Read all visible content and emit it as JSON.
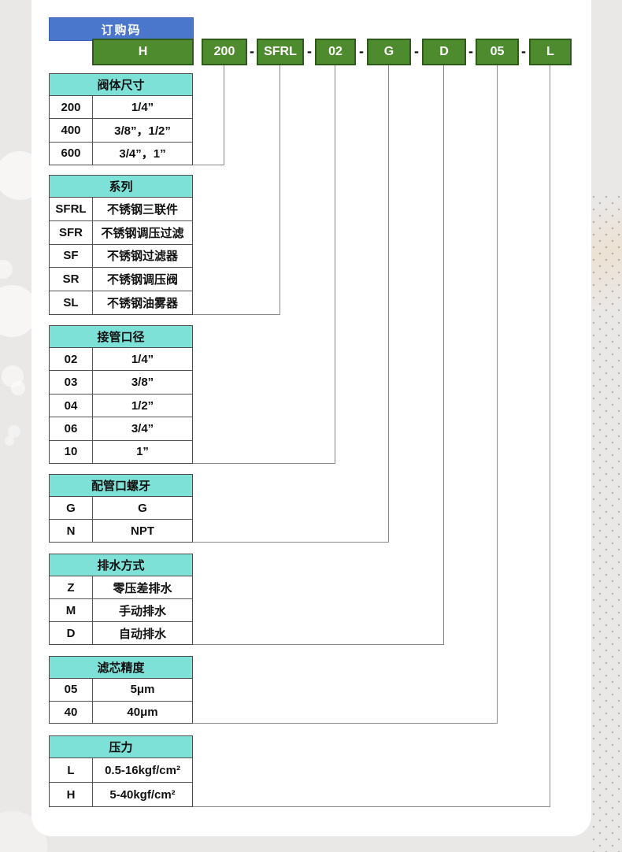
{
  "title": {
    "label": "订购码"
  },
  "code": {
    "separator": "-",
    "segments": [
      {
        "label": "H"
      },
      {
        "label": "200"
      },
      {
        "label": "SFRL"
      },
      {
        "label": "02"
      },
      {
        "label": "G"
      },
      {
        "label": "D"
      },
      {
        "label": "05"
      },
      {
        "label": "L"
      }
    ]
  },
  "tables": [
    {
      "header": "阀体尺寸",
      "rows": [
        [
          "200",
          "1/4”"
        ],
        [
          "400",
          "3/8”，1/2”"
        ],
        [
          "600",
          "3/4”，1”"
        ]
      ]
    },
    {
      "header": "系列",
      "rows": [
        [
          "SFRL",
          "不锈钢三联件"
        ],
        [
          "SFR",
          "不锈钢调压过滤"
        ],
        [
          "SF",
          "不锈钢过滤器"
        ],
        [
          "SR",
          "不锈钢调压阀"
        ],
        [
          "SL",
          "不锈钢油雾器"
        ]
      ]
    },
    {
      "header": "接管口径",
      "rows": [
        [
          "02",
          "1/4”"
        ],
        [
          "03",
          "3/8”"
        ],
        [
          "04",
          "1/2”"
        ],
        [
          "06",
          "3/4”"
        ],
        [
          "10",
          "1”"
        ]
      ]
    },
    {
      "header": "配管口螺牙",
      "rows": [
        [
          "G",
          "G"
        ],
        [
          "N",
          "NPT"
        ]
      ]
    },
    {
      "header": "排水方式",
      "rows": [
        [
          "Z",
          "零压差排水"
        ],
        [
          "M",
          "手动排水"
        ],
        [
          "D",
          "自动排水"
        ]
      ]
    },
    {
      "header": "滤芯精度",
      "rows": [
        [
          "05",
          "5μm"
        ],
        [
          "40",
          "40μm"
        ]
      ]
    },
    {
      "header": "压力",
      "rows": [
        [
          "L",
          "0.5-16kgf/cm²"
        ],
        [
          "H",
          "5-40kgf/cm²"
        ]
      ]
    }
  ],
  "colors": {
    "header_blue": "#4a76cb",
    "code_green": "#4e8b2e",
    "table_header_teal": "#7de1d8",
    "connector_gray": "#8a8a8a"
  }
}
